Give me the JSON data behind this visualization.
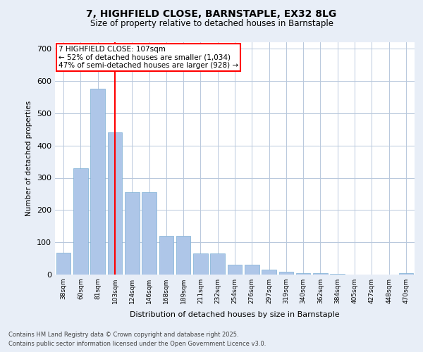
{
  "title1": "7, HIGHFIELD CLOSE, BARNSTAPLE, EX32 8LG",
  "title2": "Size of property relative to detached houses in Barnstaple",
  "xlabel": "Distribution of detached houses by size in Barnstaple",
  "ylabel": "Number of detached properties",
  "categories": [
    "38sqm",
    "60sqm",
    "81sqm",
    "103sqm",
    "124sqm",
    "146sqm",
    "168sqm",
    "189sqm",
    "211sqm",
    "232sqm",
    "254sqm",
    "276sqm",
    "297sqm",
    "319sqm",
    "340sqm",
    "362sqm",
    "384sqm",
    "405sqm",
    "427sqm",
    "448sqm",
    "470sqm"
  ],
  "values": [
    68,
    330,
    575,
    440,
    255,
    255,
    120,
    120,
    65,
    65,
    30,
    30,
    15,
    8,
    5,
    5,
    3,
    0,
    0,
    0,
    5
  ],
  "bar_color": "#aec6e8",
  "bar_edge_color": "#7bafd4",
  "vline_bar_index": 3,
  "vline_color": "red",
  "annotation_title": "7 HIGHFIELD CLOSE: 107sqm",
  "annotation_line1": "← 52% of detached houses are smaller (1,034)",
  "annotation_line2": "47% of semi-detached houses are larger (928) →",
  "ylim": [
    0,
    720
  ],
  "yticks": [
    0,
    100,
    200,
    300,
    400,
    500,
    600,
    700
  ],
  "footer_line1": "Contains HM Land Registry data © Crown copyright and database right 2025.",
  "footer_line2": "Contains public sector information licensed under the Open Government Licence v3.0.",
  "bg_color": "#e8eef7",
  "plot_bg_color": "#ffffff"
}
